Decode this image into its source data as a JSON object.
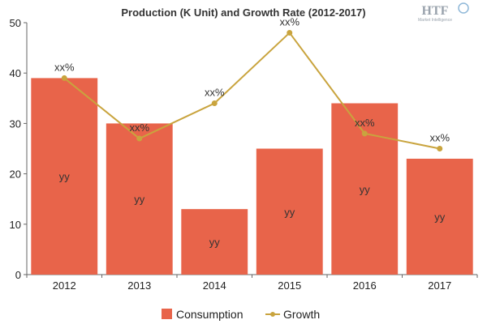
{
  "logo": {
    "text": "HTF",
    "subtext": "Market Intelligence"
  },
  "chart_data": {
    "type": "bar",
    "title": "Production (K Unit) and Growth Rate (2012-2017)",
    "categories": [
      "2012",
      "2013",
      "2014",
      "2015",
      "2016",
      "2017"
    ],
    "series": [
      {
        "name": "Consumption",
        "type": "bar",
        "color": "#e8644a",
        "values": [
          39,
          30,
          13,
          25,
          34,
          23
        ],
        "data_labels": [
          "yy",
          "yy",
          "yy",
          "yy",
          "yy",
          "yy"
        ]
      },
      {
        "name": "Growth",
        "type": "line",
        "color": "#c9a43e",
        "values": [
          39,
          27,
          34,
          48,
          28,
          25
        ],
        "data_labels": [
          "xx%",
          "xx%",
          "xx%",
          "xx%",
          "xx%",
          "xx%"
        ]
      }
    ],
    "yticks": [
      "0",
      "10",
      "20",
      "30",
      "40",
      "50"
    ],
    "ylim": [
      0,
      50
    ],
    "xlabel": "",
    "ylabel": "",
    "grid": false,
    "legend": "bottom-center"
  }
}
